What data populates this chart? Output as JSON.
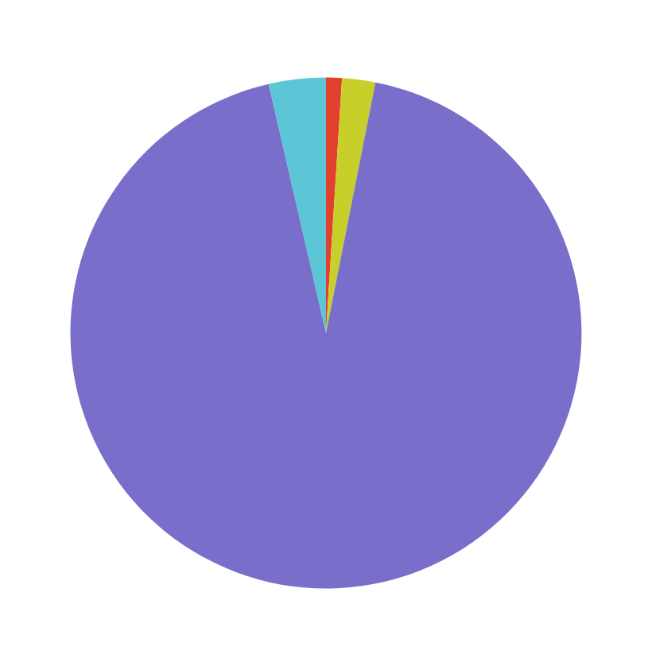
{
  "chart_data": {
    "type": "pie",
    "categories": [
      null,
      null,
      null,
      null
    ],
    "values": [
      1,
      2.1,
      93.3,
      3.6
    ],
    "colors": [
      "#e0412f",
      "#c9cf2a",
      "#7a6ecb",
      "#5cc6d6"
    ]
  }
}
